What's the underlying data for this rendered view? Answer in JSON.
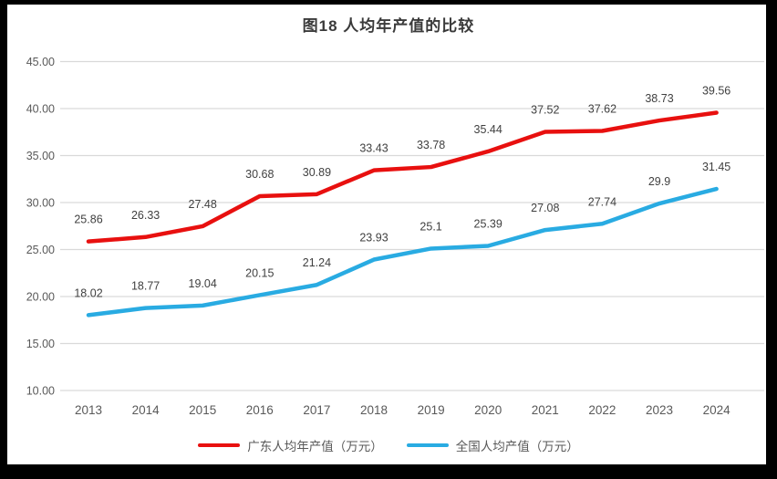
{
  "title": "图18 人均年产值的比较",
  "colors": {
    "guangdong_line": "#e8100f",
    "national_line": "#29abe2",
    "gridline": "#d9d9d9",
    "tick_text": "#595959",
    "data_label_text": "#404040",
    "frame": "#000000",
    "panel_background": "#ffffff"
  },
  "chart_data": {
    "type": "line",
    "title": "图18 人均年产值的比较",
    "categories": [
      "2013",
      "2014",
      "2015",
      "2016",
      "2017",
      "2018",
      "2019",
      "2020",
      "2021",
      "2022",
      "2023",
      "2024"
    ],
    "series": [
      {
        "name": "广东人均年产值（万元）",
        "color": "#e8100f",
        "values": [
          25.86,
          26.33,
          27.48,
          30.68,
          30.89,
          33.43,
          33.78,
          35.44,
          37.52,
          37.62,
          38.73,
          39.56
        ]
      },
      {
        "name": "全国人均产值（万元）",
        "color": "#29abe2",
        "values": [
          18.02,
          18.77,
          19.04,
          20.15,
          21.24,
          23.93,
          25.1,
          25.39,
          27.08,
          27.74,
          29.9,
          31.45
        ]
      }
    ],
    "ylim": [
      10,
      45
    ],
    "ytick_step": 5,
    "ytick_labels": [
      "10.00",
      "15.00",
      "20.00",
      "25.00",
      "30.00",
      "35.00",
      "40.00",
      "45.00"
    ],
    "xlabel": "",
    "ylabel": "",
    "grid": "horizontal",
    "data_labels": true,
    "legend_position": "bottom"
  },
  "legend": {
    "items": [
      {
        "label": "广东人均年产值（万元）",
        "color": "#e8100f"
      },
      {
        "label": "全国人均产值（万元）",
        "color": "#29abe2"
      }
    ]
  }
}
